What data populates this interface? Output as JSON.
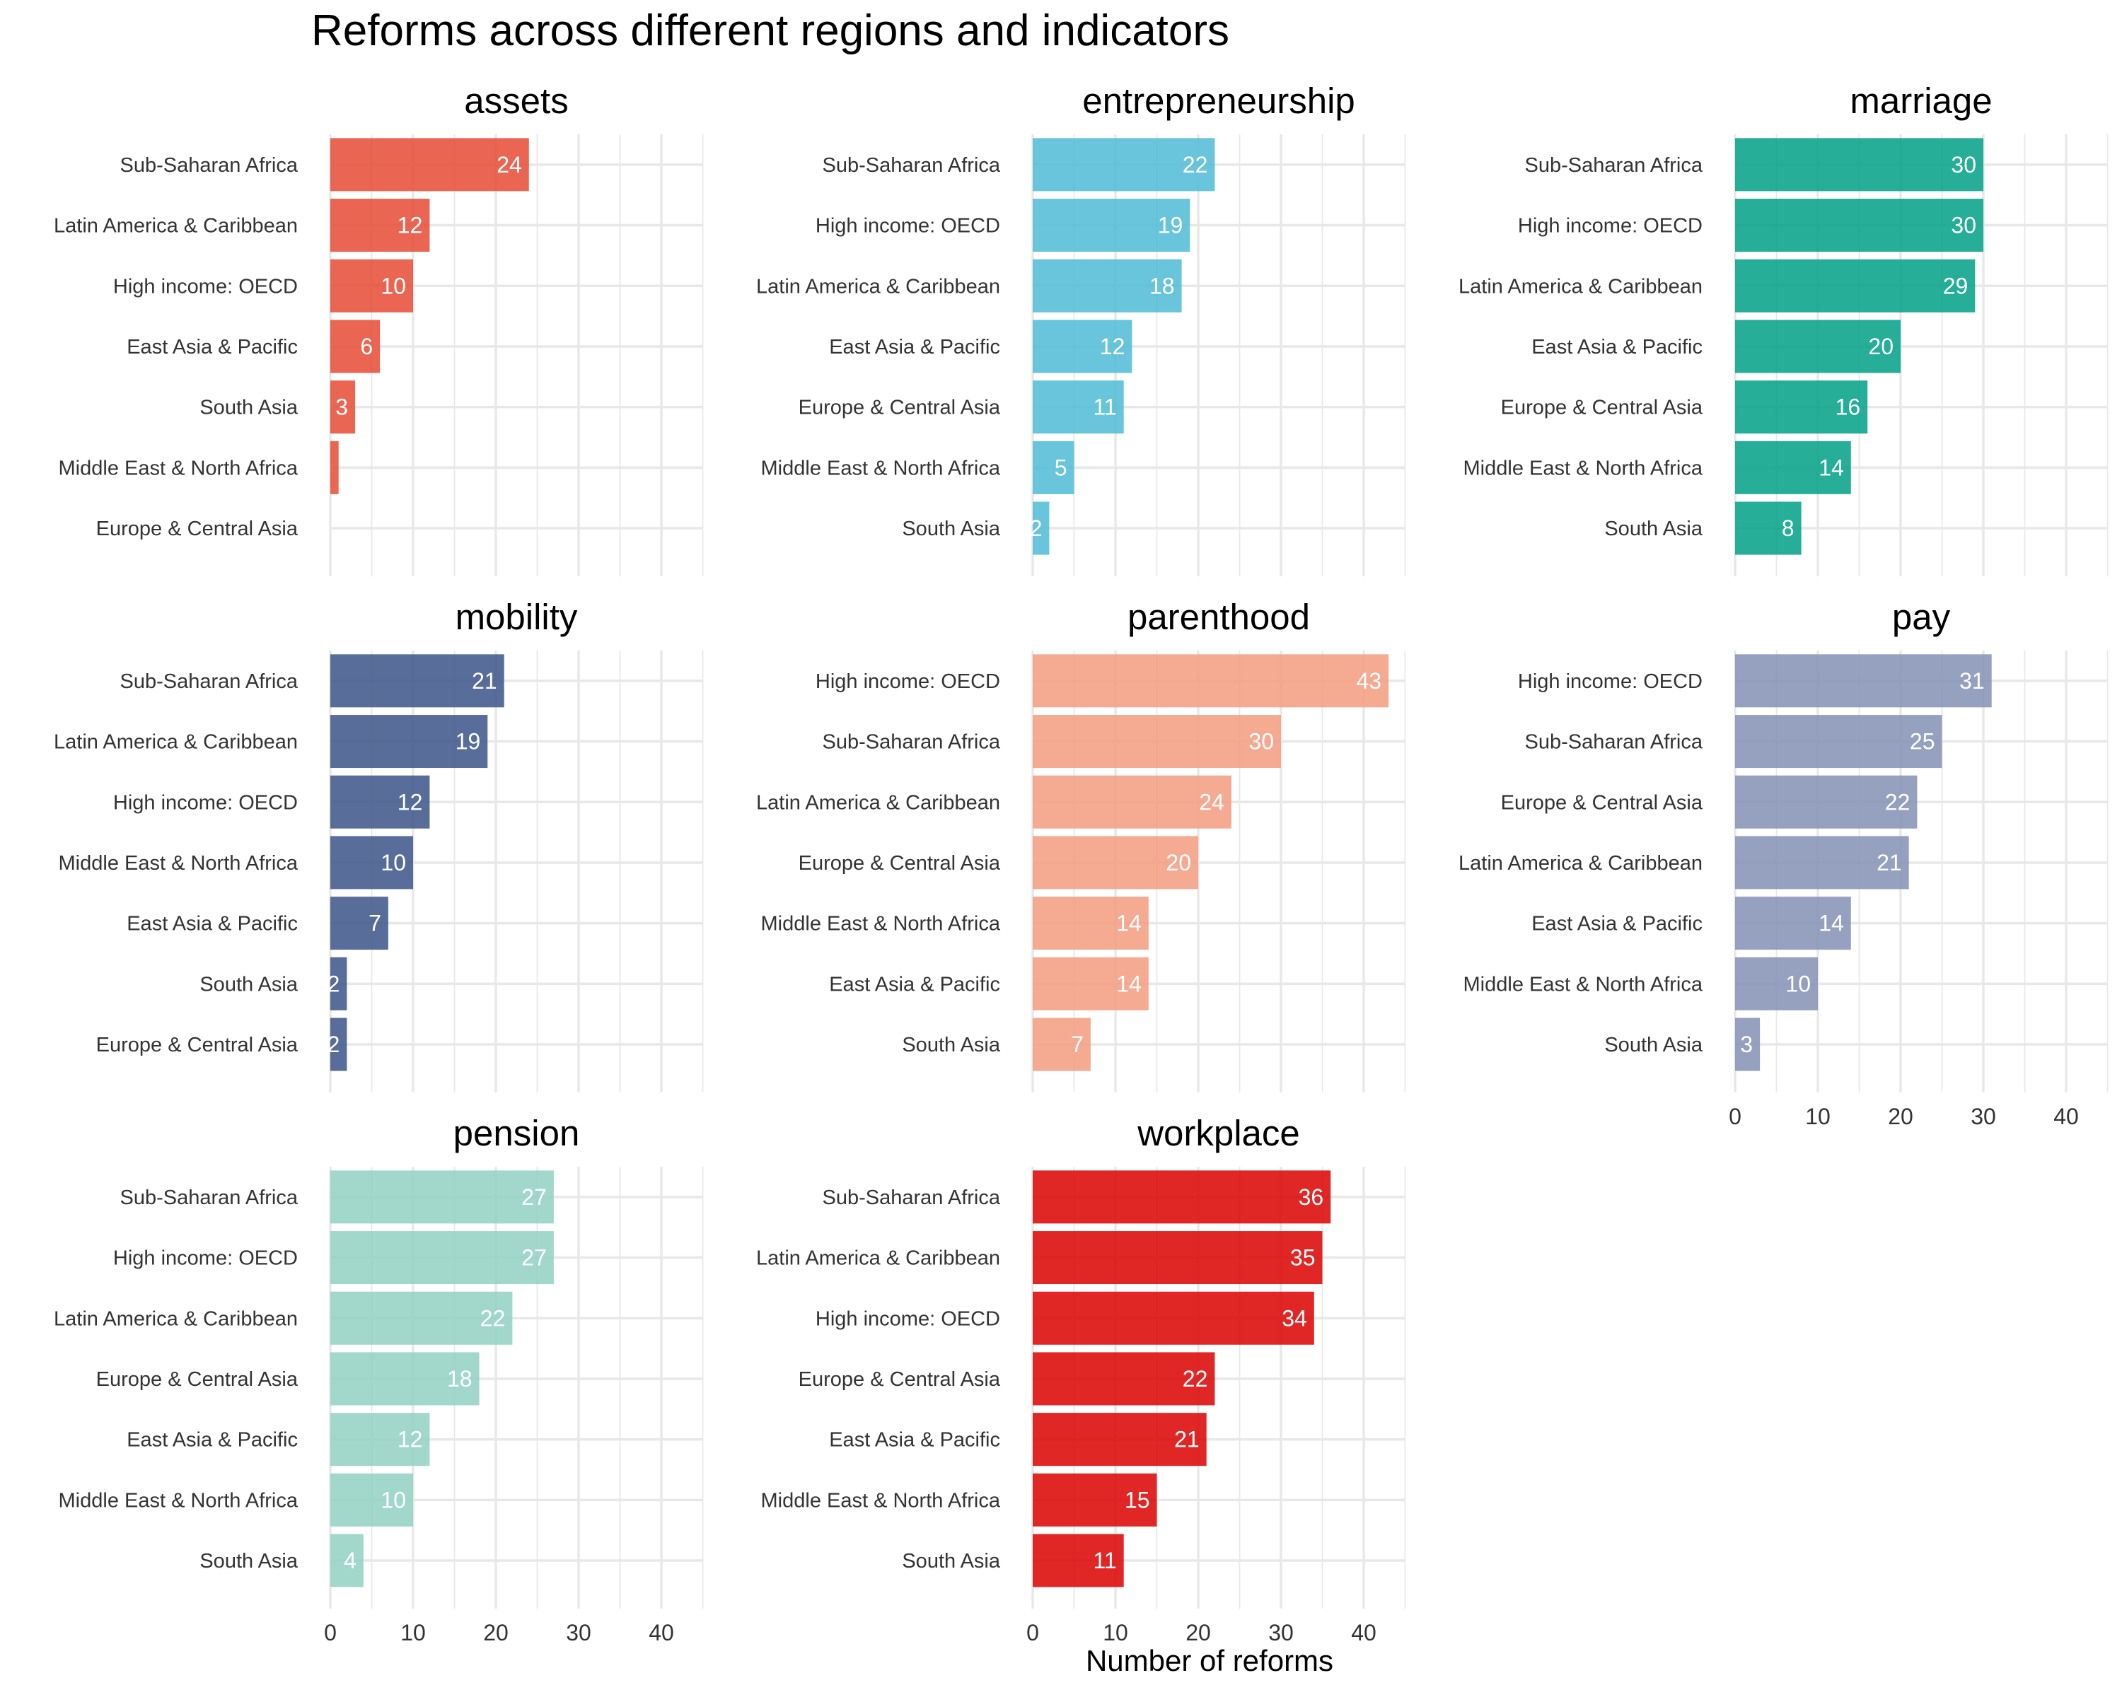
{
  "chart_data": {
    "type": "bar",
    "orientation": "horizontal",
    "title": "Reforms across different regions and indicators",
    "xlabel": "Number of reforms",
    "ylabel": "",
    "xlim": [
      0,
      45
    ],
    "x_ticks": [
      0,
      10,
      20,
      30,
      40
    ],
    "grid": true,
    "bar_labels": "inside-end",
    "facets": [
      {
        "name": "assets",
        "color": "#E64B35",
        "categories": [
          "Sub-Saharan Africa",
          "Latin America & Caribbean",
          "High income: OECD",
          "East Asia & Pacific",
          "South Asia",
          "Middle East & North Africa",
          "Europe & Central Asia"
        ],
        "values": [
          24,
          12,
          10,
          6,
          3,
          1,
          0
        ],
        "labels": [
          "24",
          "12",
          "10",
          "6",
          "3",
          "",
          ""
        ]
      },
      {
        "name": "entrepreneurship",
        "color": "#4DBBD5",
        "categories": [
          "Sub-Saharan Africa",
          "High income: OECD",
          "Latin America & Caribbean",
          "East Asia & Pacific",
          "Europe & Central Asia",
          "Middle East & North Africa",
          "South Asia"
        ],
        "values": [
          22,
          19,
          18,
          12,
          11,
          5,
          2
        ],
        "labels": [
          "22",
          "19",
          "18",
          "12",
          "11",
          "5",
          "2"
        ]
      },
      {
        "name": "marriage",
        "color": "#00A087",
        "categories": [
          "Sub-Saharan Africa",
          "High income: OECD",
          "Latin America & Caribbean",
          "East Asia & Pacific",
          "Europe & Central Asia",
          "Middle East & North Africa",
          "South Asia"
        ],
        "values": [
          30,
          30,
          29,
          20,
          16,
          14,
          8
        ],
        "labels": [
          "30",
          "30",
          "29",
          "20",
          "16",
          "14",
          "8"
        ]
      },
      {
        "name": "mobility",
        "color": "#3C5488",
        "categories": [
          "Sub-Saharan Africa",
          "Latin America & Caribbean",
          "High income: OECD",
          "Middle East & North Africa",
          "East Asia & Pacific",
          "South Asia",
          "Europe & Central Asia"
        ],
        "values": [
          21,
          19,
          12,
          10,
          7,
          2,
          2
        ],
        "labels": [
          "21",
          "19",
          "12",
          "10",
          "7",
          "2",
          "2"
        ]
      },
      {
        "name": "parenthood",
        "color": "#F39B7F",
        "categories": [
          "High income: OECD",
          "Sub-Saharan Africa",
          "Latin America & Caribbean",
          "Europe & Central Asia",
          "Middle East & North Africa",
          "East Asia & Pacific",
          "South Asia"
        ],
        "values": [
          43,
          30,
          24,
          20,
          14,
          14,
          7
        ],
        "labels": [
          "43",
          "30",
          "24",
          "20",
          "14",
          "14",
          "7"
        ]
      },
      {
        "name": "pay",
        "color": "#8491B4",
        "categories": [
          "High income: OECD",
          "Sub-Saharan Africa",
          "Europe & Central Asia",
          "Latin America & Caribbean",
          "East Asia & Pacific",
          "Middle East & North Africa",
          "South Asia"
        ],
        "values": [
          31,
          25,
          22,
          21,
          14,
          10,
          3
        ],
        "labels": [
          "31",
          "25",
          "22",
          "21",
          "14",
          "10",
          "3"
        ]
      },
      {
        "name": "pension",
        "color": "#91D1C2",
        "categories": [
          "Sub-Saharan Africa",
          "High income: OECD",
          "Latin America & Caribbean",
          "Europe & Central Asia",
          "East Asia & Pacific",
          "Middle East & North Africa",
          "South Asia"
        ],
        "values": [
          27,
          27,
          22,
          18,
          12,
          10,
          4
        ],
        "labels": [
          "27",
          "27",
          "22",
          "18",
          "12",
          "10",
          "4"
        ]
      },
      {
        "name": "workplace",
        "color": "#DC0000",
        "categories": [
          "Sub-Saharan Africa",
          "Latin America & Caribbean",
          "High income: OECD",
          "Europe & Central Asia",
          "East Asia & Pacific",
          "Middle East & North Africa",
          "South Asia"
        ],
        "values": [
          36,
          35,
          34,
          22,
          21,
          15,
          11
        ],
        "labels": [
          "36",
          "35",
          "34",
          "22",
          "21",
          "15",
          "11"
        ]
      }
    ]
  }
}
